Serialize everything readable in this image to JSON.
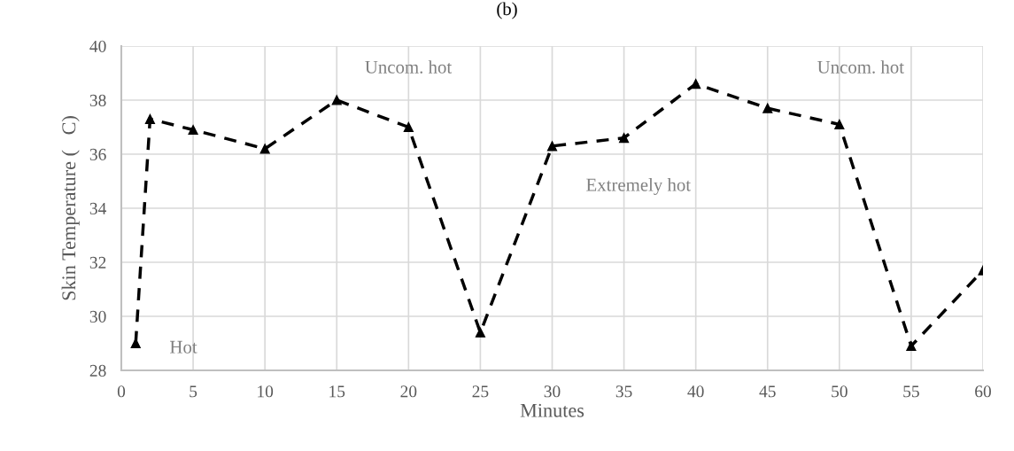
{
  "chart_data": {
    "type": "line",
    "title": "(b)",
    "xlabel": "Minutes",
    "ylabel": "Skin Temperature (   C)",
    "x": [
      1,
      2,
      5,
      10,
      15,
      20,
      25,
      30,
      35,
      40,
      45,
      50,
      55,
      60
    ],
    "series": [
      {
        "color": "#000000",
        "values": [
          29.0,
          37.3,
          36.9,
          36.2,
          38.0,
          37.0,
          29.4,
          36.3,
          36.6,
          38.6,
          37.7,
          37.1,
          28.9,
          31.7
        ]
      }
    ],
    "xlim": [
      0,
      60
    ],
    "xticks": [
      0,
      5,
      10,
      15,
      20,
      25,
      30,
      35,
      40,
      45,
      50,
      55,
      60
    ],
    "ylim": [
      28,
      40
    ],
    "yticks": [
      28,
      30,
      32,
      34,
      36,
      38,
      40
    ],
    "grid": true,
    "legend": false,
    "marker": "triangle",
    "line_style": "dashed",
    "annotations": [
      "Uncom. hot",
      "Uncom. hot",
      "Extremely hot",
      "Hot"
    ]
  }
}
